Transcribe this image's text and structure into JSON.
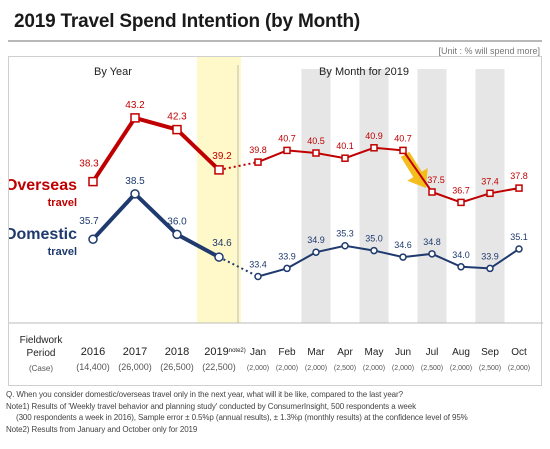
{
  "header": {
    "title": "2019 Travel Spend Intention (by Month)",
    "unit": "[Unit : % will spend more]"
  },
  "chart_data": {
    "type": "line",
    "sections": [
      "By Year",
      "By Month for 2019"
    ],
    "row_header": [
      "Fieldwork",
      "Period",
      "(Case)"
    ],
    "categories": [
      "2016",
      "2017",
      "2018",
      "2019",
      "Jan",
      "Feb",
      "Mar",
      "Apr",
      "May",
      "Jun",
      "Jul",
      "Aug",
      "Sep",
      "Oct"
    ],
    "category_notes": [
      "",
      "",
      "",
      "note2)",
      "",
      "",
      "",
      "",
      "",
      "",
      "",
      "",
      "",
      ""
    ],
    "cases": [
      "(14,400)",
      "(26,000)",
      "(26,500)",
      "(22,500)",
      "(2,000)",
      "(2,000)",
      "(2,000)",
      "(2,500)",
      "(2,000)",
      "(2,000)",
      "(2,500)",
      "(2,000)",
      "(2,500)",
      "(2,000)"
    ],
    "series": [
      {
        "name": "Overseas travel",
        "label_lines": [
          "Overseas",
          "travel"
        ],
        "color": "#c00000",
        "values": [
          38.3,
          43.2,
          42.3,
          39.2,
          39.8,
          40.7,
          40.5,
          40.1,
          40.9,
          40.7,
          37.5,
          36.7,
          37.4,
          37.8
        ],
        "labels": [
          "38.3",
          "43.2",
          "42.3",
          "39.2",
          "39.8",
          "40.7",
          "40.5",
          "40.1",
          "40.9",
          "40.7",
          "37.5",
          "36.7",
          "37.4",
          "37.8"
        ]
      },
      {
        "name": "Domestic travel",
        "label_lines": [
          "Domestic",
          "travel"
        ],
        "color": "#1f3a6e",
        "values": [
          35.7,
          38.5,
          36.0,
          34.6,
          33.4,
          33.9,
          34.9,
          35.3,
          35.0,
          34.6,
          34.8,
          34.0,
          33.9,
          35.1
        ],
        "labels": [
          "35.7",
          "38.5",
          "36.0",
          "34.6",
          "33.4",
          "33.9",
          "34.9",
          "35.3",
          "35.0",
          "34.6",
          "34.8",
          "34.0",
          "33.9",
          "35.1"
        ]
      }
    ],
    "highlight_color": "#fff8c8",
    "shade_color": "#e6e6e6",
    "arrow_color": "#f2b705",
    "grid": false
  },
  "notes": [
    "Q. When you consider domestic/overseas travel only in the next year, what will it be like, compared to the last year?",
    "Note1) Results of 'Weekly travel behavior and planning study' conducted by ConsumerInsight, 500 respondents a week",
    "(300  respondents a  week in 2016), Sample error ± 0.5%p (annual results), ± 1.3%p  (monthly results) at the confidence level of 95%",
    "Note2) Results from January and October only for 2019"
  ]
}
